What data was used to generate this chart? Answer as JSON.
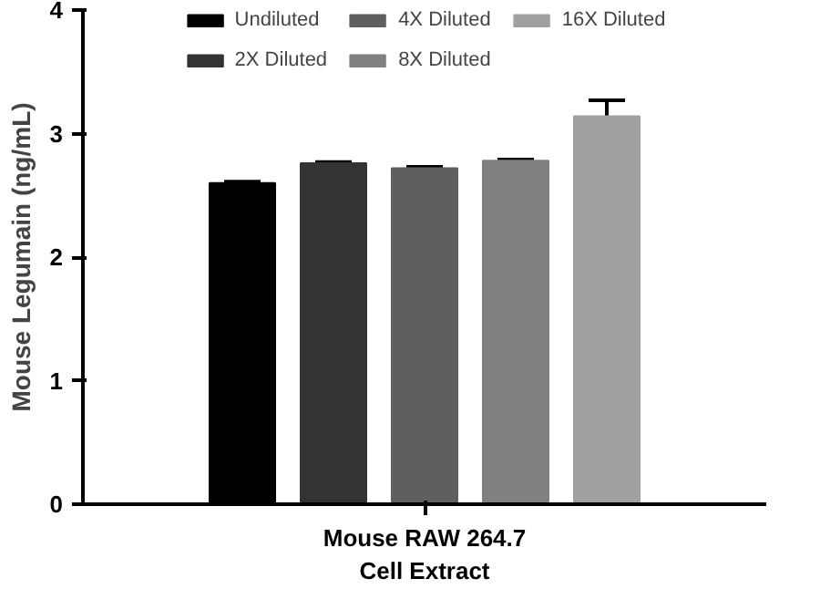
{
  "chart_data": {
    "type": "bar",
    "ylabel": "Mouse Legumain (ng/mL)",
    "categories": [
      "Mouse RAW 264.7\nCell Extract"
    ],
    "series": [
      {
        "name": "Undiluted",
        "color": "#000000",
        "values": [
          2.6
        ],
        "errors": [
          0.01
        ]
      },
      {
        "name": "2X Diluted",
        "color": "#333333",
        "values": [
          2.76
        ],
        "errors": [
          0.01
        ]
      },
      {
        "name": "4X Diluted",
        "color": "#5f5f5f",
        "values": [
          2.72
        ],
        "errors": [
          0.01
        ]
      },
      {
        "name": "8X Diluted",
        "color": "#808080",
        "values": [
          2.78
        ],
        "errors": [
          0.01
        ]
      },
      {
        "name": "16X Diluted",
        "color": "#a0a0a3",
        "values": [
          3.14
        ],
        "errors": [
          0.13
        ]
      }
    ],
    "ylim": [
      0,
      4
    ],
    "yticks": [
      0,
      1,
      2,
      3,
      4
    ],
    "grid": false,
    "legend": "top"
  }
}
